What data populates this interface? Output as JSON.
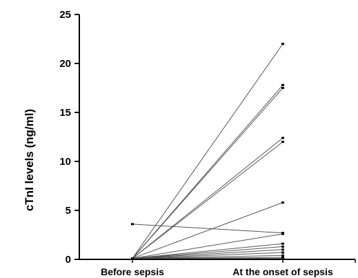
{
  "chart_data": {
    "type": "line",
    "title": "",
    "xlabel": "",
    "ylabel": "cTnI levels (ng/ml)",
    "categories": [
      "Before sepsis",
      "At the onset of sepsis"
    ],
    "ylim": [
      0,
      25
    ],
    "yticks": [
      0,
      5,
      10,
      15,
      20,
      25
    ],
    "grid": false,
    "legend": "none",
    "series": [
      {
        "values": [
          0.1,
          22.0
        ]
      },
      {
        "values": [
          0.1,
          17.8
        ]
      },
      {
        "values": [
          0.1,
          17.5
        ]
      },
      {
        "values": [
          0.1,
          12.4
        ]
      },
      {
        "values": [
          0.1,
          12.0
        ]
      },
      {
        "values": [
          0.1,
          5.8
        ]
      },
      {
        "values": [
          3.6,
          2.7
        ]
      },
      {
        "values": [
          0.1,
          2.6
        ]
      },
      {
        "values": [
          0.1,
          1.6
        ]
      },
      {
        "values": [
          0.1,
          1.3
        ]
      },
      {
        "values": [
          0.1,
          1.0
        ]
      },
      {
        "values": [
          0.1,
          0.7
        ]
      },
      {
        "values": [
          0.1,
          0.4
        ]
      },
      {
        "values": [
          0.1,
          0.2
        ]
      },
      {
        "values": [
          0.1,
          0.1
        ]
      }
    ],
    "colors": {
      "line": "#555555",
      "axis": "#000000",
      "marker": "#000000"
    }
  }
}
